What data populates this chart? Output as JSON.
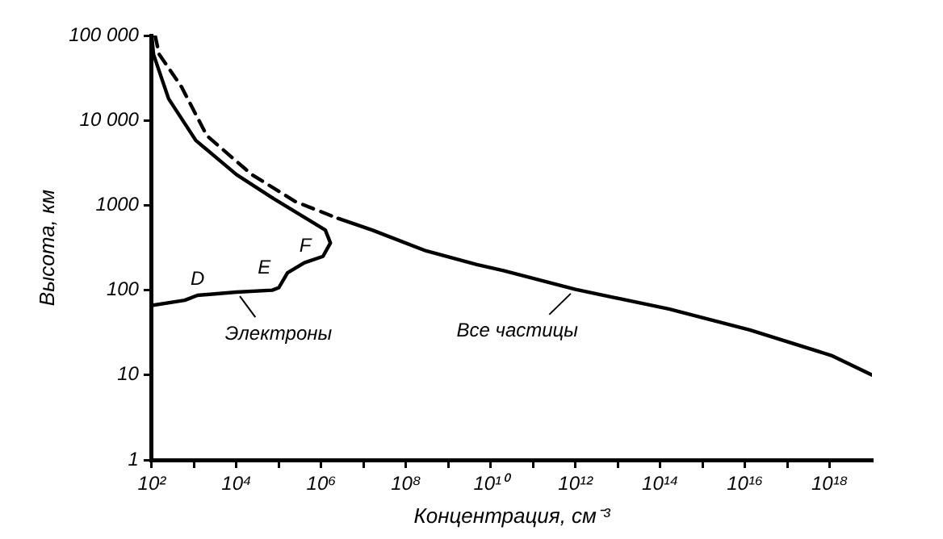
{
  "chart_data": {
    "type": "line",
    "xlabel": "Концентрация, см⁻³",
    "ylabel": "Высота, км",
    "log": "xy",
    "grid": false,
    "legend": false,
    "marker": "none",
    "xlim": [
      100,
      1e+19
    ],
    "xticks": [
      {
        "value": 100,
        "label": "10²"
      },
      {
        "value": 1000,
        "label": null
      },
      {
        "value": 10000,
        "label": "10⁴"
      },
      {
        "value": 100000,
        "label": null
      },
      {
        "value": 1000000,
        "label": "10⁶"
      },
      {
        "value": 10000000.0,
        "label": null
      },
      {
        "value": 100000000.0,
        "label": "10⁸"
      },
      {
        "value": 1000000000.0,
        "label": null
      },
      {
        "value": 10000000000.0,
        "label": "10¹⁰"
      },
      {
        "value": 100000000000.0,
        "label": null
      },
      {
        "value": 1000000000000.0,
        "label": "10¹²"
      },
      {
        "value": 10000000000000.0,
        "label": null
      },
      {
        "value": 100000000000000.0,
        "label": "10¹⁴"
      },
      {
        "value": 1000000000000000.0,
        "label": null
      },
      {
        "value": 1e+16,
        "label": "10¹⁶"
      },
      {
        "value": 1e+17,
        "label": null
      },
      {
        "value": 1e+18,
        "label": "10¹⁸"
      }
    ],
    "ylim": [
      1,
      100000
    ],
    "yticks": [
      1,
      10,
      100,
      1000,
      {
        "value": 10000,
        "label": "10 000"
      },
      {
        "value": 100000,
        "label": "100 000"
      }
    ],
    "series": [
      {
        "color": "#000000",
        "line_style": "solid",
        "x": [
          100,
          110,
          250,
          1100,
          10000,
          75000,
          440000,
          1250000,
          1650000,
          1100000,
          400000,
          160000,
          100000,
          70000,
          10000,
          1200,
          600,
          100
        ],
        "values": [
          100000,
          60000,
          18000,
          5800,
          2300,
          1200,
          700,
          510,
          360,
          250,
          210,
          160,
          107,
          100,
          95,
          87,
          76,
          66
        ]
      },
      {
        "color": "#000000",
        "line_style": "dashed",
        "x": [
          120,
          150,
          500,
          2000,
          23000,
          250000,
          2500000
        ],
        "values": [
          100000,
          60000,
          25000,
          6600,
          2300,
          1100,
          700
        ]
      },
      {
        "color": "#000000",
        "line_style": "solid",
        "x": [
          2500000,
          16000000,
          300000000.0,
          4700000000.0,
          20000000000.0,
          1000000000000.0,
          160000000000000.0,
          1.3e+16,
          1.1e+18,
          1e+19
        ],
        "values": [
          700,
          510,
          290,
          200,
          170,
          102,
          60,
          34,
          17,
          10
        ]
      }
    ],
    "annotations": [
      {
        "text": "D",
        "x": 1200,
        "y": 87
      },
      {
        "text": "E",
        "x": 100000,
        "y": 107
      },
      {
        "text": "F",
        "x": 1100000,
        "y": 250
      },
      {
        "text": "Электроны",
        "x": 10000,
        "y": 95
      },
      {
        "text": "Все частицы",
        "x": 1000000000000.0,
        "y": 102
      }
    ]
  }
}
